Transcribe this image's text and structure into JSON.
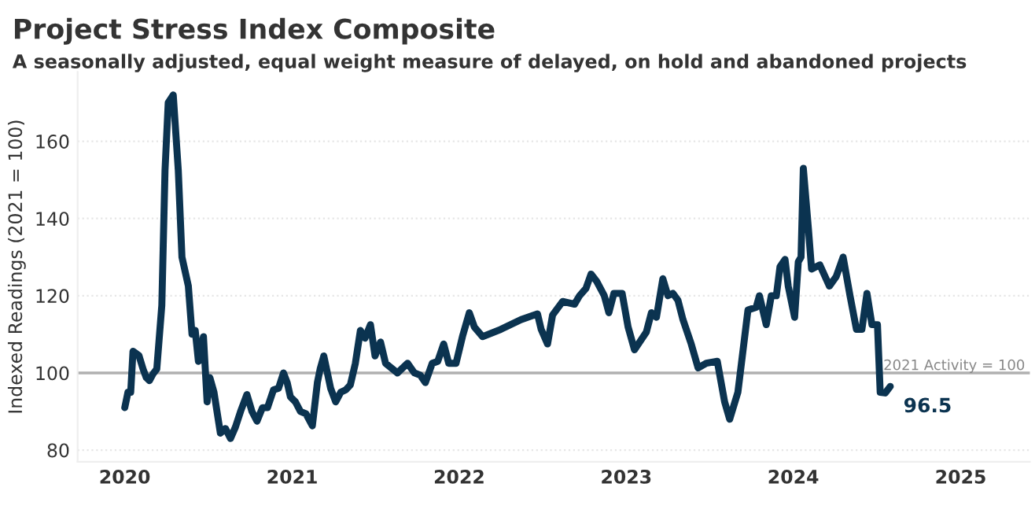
{
  "chart_data": {
    "type": "line",
    "title": "Project Stress Index Composite",
    "subtitle": "A seasonally adjusted, equal weight measure of delayed, on hold and abandoned projects",
    "ylabel": "Indexed Readings (2021 = 100)",
    "x": [
      "2020-01-01",
      "2020-01-08",
      "2020-01-14",
      "2020-01-19",
      "2020-02-01",
      "2020-02-10",
      "2020-02-17",
      "2020-02-24",
      "2020-03-03",
      "2020-03-11",
      "2020-03-22",
      "2020-03-29",
      "2020-04-05",
      "2020-04-16",
      "2020-04-27",
      "2020-05-05",
      "2020-05-19",
      "2020-05-27",
      "2020-06-03",
      "2020-06-10",
      "2020-06-21",
      "2020-06-29",
      "2020-07-05",
      "2020-07-14",
      "2020-07-28",
      "2020-08-08",
      "2020-08-19",
      "2020-08-30",
      "2020-09-10",
      "2020-09-24",
      "2020-10-05",
      "2020-10-16",
      "2020-10-28",
      "2020-11-08",
      "2020-11-21",
      "2020-12-02",
      "2020-12-13",
      "2020-12-21",
      "2020-12-28",
      "2021-01-08",
      "2021-01-19",
      "2021-01-31",
      "2021-02-14",
      "2021-02-25",
      "2021-03-03",
      "2021-03-11",
      "2021-03-26",
      "2021-04-06",
      "2021-04-17",
      "2021-04-28",
      "2021-05-08",
      "2021-05-19",
      "2021-05-30",
      "2021-06-09",
      "2021-06-21",
      "2021-07-01",
      "2021-07-13",
      "2021-07-24",
      "2021-08-19",
      "2021-09-10",
      "2021-09-25",
      "2021-10-08",
      "2021-10-19",
      "2021-11-03",
      "2021-11-15",
      "2021-11-28",
      "2021-12-09",
      "2021-12-25",
      "2022-01-08",
      "2022-01-23",
      "2022-02-03",
      "2022-02-21",
      "2022-04-02",
      "2022-05-16",
      "2022-06-21",
      "2022-06-29",
      "2022-07-13",
      "2022-07-24",
      "2022-08-15",
      "2022-09-10",
      "2022-09-21",
      "2022-10-05",
      "2022-10-16",
      "2022-10-28",
      "2022-11-14",
      "2022-11-24",
      "2022-12-05",
      "2022-12-23",
      "2023-01-05",
      "2023-01-19",
      "2023-02-14",
      "2023-02-25",
      "2023-03-08",
      "2023-03-22",
      "2023-04-02",
      "2023-04-13",
      "2023-04-24",
      "2023-05-05",
      "2023-05-23",
      "2023-06-07",
      "2023-06-25",
      "2023-07-19",
      "2023-08-04",
      "2023-08-15",
      "2023-09-02",
      "2023-09-24",
      "2023-10-12",
      "2023-10-19",
      "2023-11-03",
      "2023-11-14",
      "2023-11-25",
      "2023-12-03",
      "2023-12-14",
      "2023-12-21",
      "2024-01-04",
      "2024-01-12",
      "2024-01-18",
      "2024-01-23",
      "2024-02-03",
      "2024-02-10",
      "2024-02-28",
      "2024-03-20",
      "2024-04-04",
      "2024-04-19",
      "2024-05-04",
      "2024-05-18",
      "2024-05-30",
      "2024-06-10",
      "2024-06-21",
      "2024-07-03",
      "2024-07-09",
      "2024-07-20",
      "2024-07-31"
    ],
    "series": [
      {
        "color": "#0b3350",
        "values": [
          91,
          95,
          95,
          105.6,
          104.5,
          101,
          98.8,
          98,
          99.8,
          101,
          117.5,
          152.5,
          170,
          172,
          152.5,
          130,
          122.5,
          110,
          111,
          103,
          109.4,
          92.5,
          98.8,
          95,
          84.4,
          85.6,
          83,
          86,
          90,
          94.4,
          90,
          87.5,
          91,
          91,
          95.6,
          96,
          100,
          97.5,
          93.8,
          92.5,
          90,
          89.4,
          86.3,
          97.5,
          101,
          104.4,
          96,
          92.5,
          95,
          95.6,
          96.9,
          102.5,
          111,
          109,
          112.5,
          104.4,
          108,
          102.5,
          100,
          102.5,
          100,
          99.4,
          97.5,
          102.5,
          103,
          107.5,
          102.5,
          102.5,
          109.4,
          115.6,
          111.9,
          109.4,
          111.3,
          113.8,
          115.3,
          111.3,
          107.5,
          115,
          118.5,
          117.8,
          120,
          121.9,
          125.6,
          123.8,
          120,
          115.6,
          120.6,
          120.6,
          111.9,
          106,
          110.6,
          115.6,
          114.4,
          124.4,
          120,
          120.6,
          118.8,
          113.8,
          107.5,
          101.3,
          102.5,
          103,
          92.5,
          88,
          95,
          116.3,
          117,
          120,
          112.5,
          120,
          120,
          127.5,
          129.4,
          122.5,
          114.4,
          128.8,
          130,
          153,
          137.5,
          126.9,
          128,
          122.5,
          125,
          130,
          120,
          111.3,
          111.3,
          120.6,
          112.5,
          112.5,
          95,
          94.8,
          96.5
        ]
      }
    ],
    "xlim": [
      "2019-09-20",
      "2025-06-01"
    ],
    "xticks": [
      {
        "value": "2020-01-01",
        "label": "2020"
      },
      {
        "value": "2021-01-01",
        "label": "2021"
      },
      {
        "value": "2022-01-01",
        "label": "2022"
      },
      {
        "value": "2023-01-01",
        "label": "2023"
      },
      {
        "value": "2024-01-01",
        "label": "2024"
      },
      {
        "value": "2025-01-01",
        "label": "2025"
      }
    ],
    "ylim": [
      77,
      178
    ],
    "yticks": [
      80,
      100,
      120,
      140,
      160
    ],
    "grid": "y",
    "ref_lines": [
      {
        "axis": "y",
        "value": 100,
        "label": "2021 Activity = 100",
        "color": "#b0b0b0"
      }
    ],
    "annotations": [
      {
        "text": "96.5",
        "x": "2024-07-31",
        "y": 96.5
      }
    ],
    "line_style": "solid",
    "marker": "none"
  }
}
